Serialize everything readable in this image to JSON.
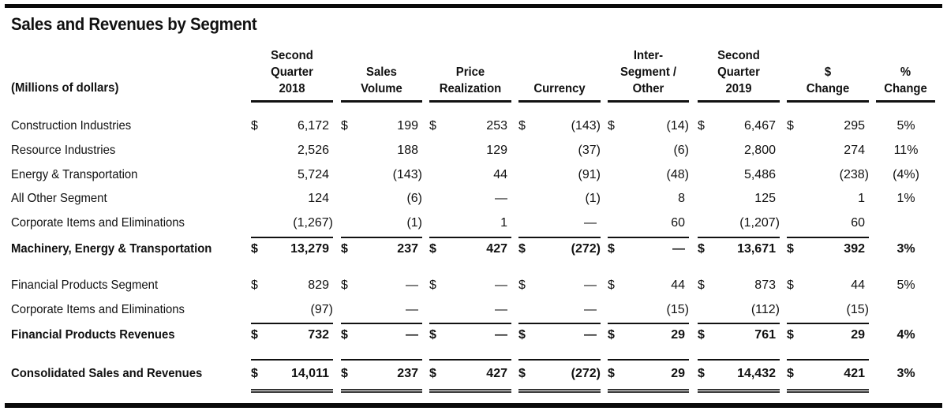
{
  "title": "Sales and Revenues by Segment",
  "units": "(Millions of dollars)",
  "columns": [
    {
      "key": "q2_2018",
      "lines": [
        "Second",
        "Quarter",
        "2018"
      ]
    },
    {
      "key": "sales_volume",
      "lines": [
        "",
        "Sales",
        "Volume"
      ]
    },
    {
      "key": "price_realization",
      "lines": [
        "",
        "Price",
        "Realization"
      ]
    },
    {
      "key": "currency",
      "lines": [
        "",
        "",
        "Currency"
      ]
    },
    {
      "key": "intersegment_other",
      "lines": [
        "Inter-",
        "Segment /",
        "Other"
      ]
    },
    {
      "key": "q2_2019",
      "lines": [
        "Second",
        "Quarter",
        "2019"
      ]
    },
    {
      "key": "dollar_change",
      "lines": [
        "",
        "$",
        "Change"
      ]
    },
    {
      "key": "pct_change",
      "lines": [
        "",
        "%",
        "Change"
      ]
    }
  ],
  "rows": [
    {
      "label": "Construction Industries",
      "bold": false,
      "dollar": true,
      "values": [
        "6,172",
        "199",
        "253",
        "(143)",
        "(14)",
        "6,467",
        "295"
      ],
      "pct": "5%"
    },
    {
      "label": "Resource Industries",
      "bold": false,
      "dollar": false,
      "values": [
        "2,526",
        "188",
        "129",
        "(37)",
        "(6)",
        "2,800",
        "274"
      ],
      "pct": "11%"
    },
    {
      "label": "Energy & Transportation",
      "bold": false,
      "dollar": false,
      "values": [
        "5,724",
        "(143)",
        "44",
        "(91)",
        "(48)",
        "5,486",
        "(238)"
      ],
      "pct": "(4%)"
    },
    {
      "label": "All Other Segment",
      "bold": false,
      "dollar": false,
      "values": [
        "124",
        "(6)",
        "—",
        "(1)",
        "8",
        "125",
        "1"
      ],
      "pct": "1%"
    },
    {
      "label": "Corporate Items and Eliminations",
      "bold": false,
      "dollar": false,
      "values": [
        "(1,267)",
        "(1)",
        "1",
        "—",
        "60",
        "(1,207)",
        "60"
      ],
      "pct": ""
    },
    {
      "label": "Machinery, Energy & Transportation",
      "bold": true,
      "dollar": true,
      "values": [
        "13,279",
        "237",
        "427",
        "(272)",
        "—",
        "13,671",
        "392"
      ],
      "pct": "3%"
    },
    {
      "label": "Financial Products Segment",
      "bold": false,
      "dollar": true,
      "values": [
        "829",
        "—",
        "—",
        "—",
        "44",
        "873",
        "44"
      ],
      "pct": "5%"
    },
    {
      "label": "Corporate Items and Eliminations",
      "bold": false,
      "dollar": false,
      "values": [
        "(97)",
        "—",
        "—",
        "—",
        "(15)",
        "(112)",
        "(15)"
      ],
      "pct": ""
    },
    {
      "label": "Financial Products Revenues",
      "bold": true,
      "dollar": true,
      "values": [
        "732",
        "—",
        "—",
        "—",
        "29",
        "761",
        "29"
      ],
      "pct": "4%"
    },
    {
      "label": "Consolidated Sales and Revenues",
      "bold": true,
      "dollar": true,
      "values": [
        "14,011",
        "237",
        "427",
        "(272)",
        "29",
        "14,432",
        "421"
      ],
      "pct": "3%"
    }
  ],
  "currency_symbol": "$"
}
